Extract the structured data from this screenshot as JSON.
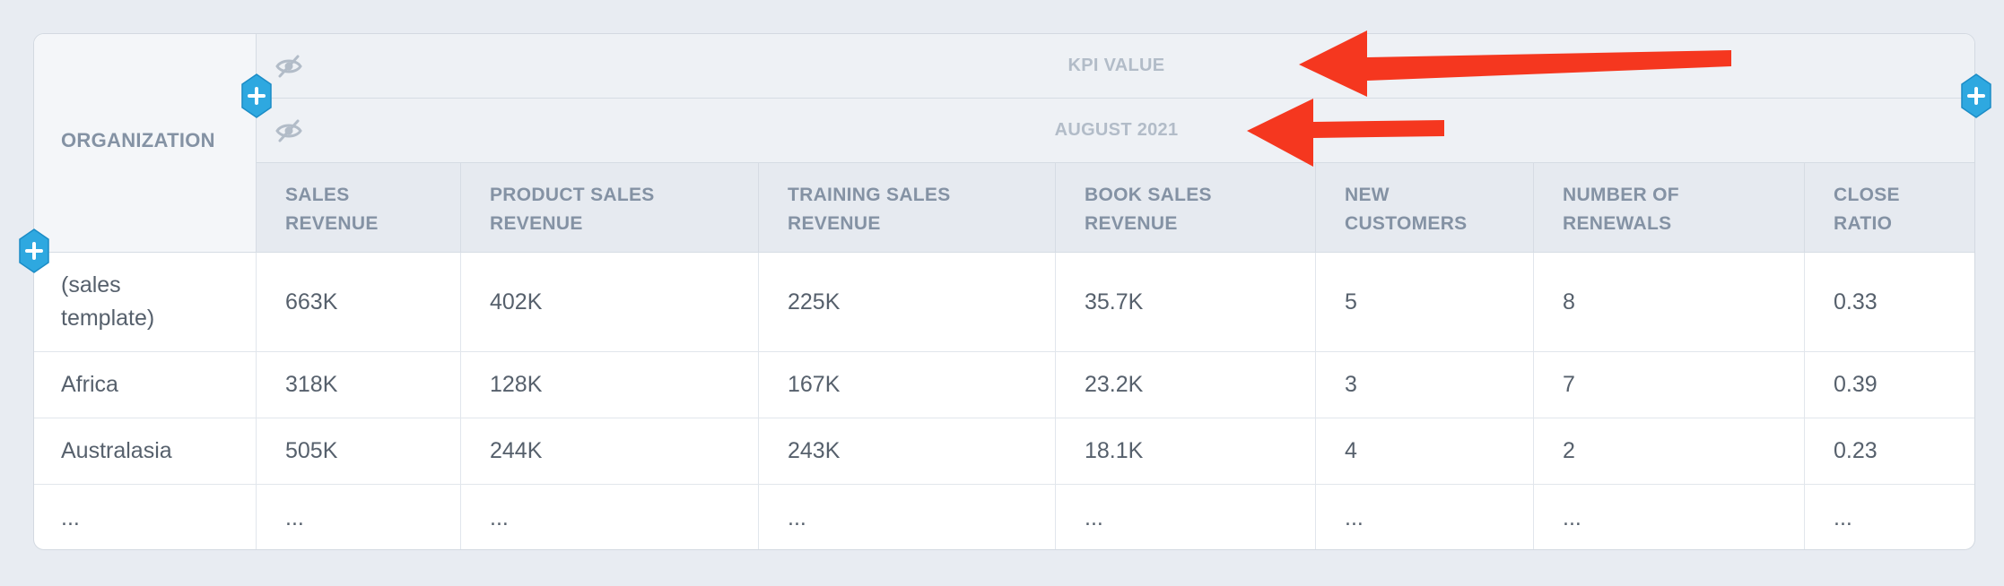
{
  "table": {
    "org_header": "ORGANIZATION",
    "kpi_band_label": "KPI VALUE",
    "period_band_label": "AUGUST 2021",
    "columns": [
      "SALES\nREVENUE",
      "PRODUCT SALES\nREVENUE",
      "TRAINING SALES\nREVENUE",
      "BOOK SALES\nREVENUE",
      "NEW\nCUSTOMERS",
      "NUMBER OF\nRENEWALS",
      "CLOSE\nRATIO"
    ],
    "rows": [
      {
        "org": "(sales\ntemplate)",
        "values": [
          "663K",
          "402K",
          "225K",
          "35.7K",
          "5",
          "8",
          "0.33"
        ]
      },
      {
        "org": "Africa",
        "values": [
          "318K",
          "128K",
          "167K",
          "23.2K",
          "3",
          "7",
          "0.39"
        ]
      },
      {
        "org": "Australasia",
        "values": [
          "505K",
          "244K",
          "243K",
          "18.1K",
          "4",
          "2",
          "0.23"
        ]
      },
      {
        "org": "...",
        "values": [
          "...",
          "...",
          "...",
          "...",
          "...",
          "...",
          "..."
        ]
      }
    ]
  },
  "icons": {
    "hide": "eye-slash-icon",
    "add": "plus-hexagon-icon",
    "annotation": "red-arrow"
  },
  "colors": {
    "add_button": "#2ea8e0",
    "annotation_arrow": "#f5371f",
    "band_text": "#b2bcc8",
    "header_text": "#8492a4",
    "cell_text": "#56606c"
  }
}
